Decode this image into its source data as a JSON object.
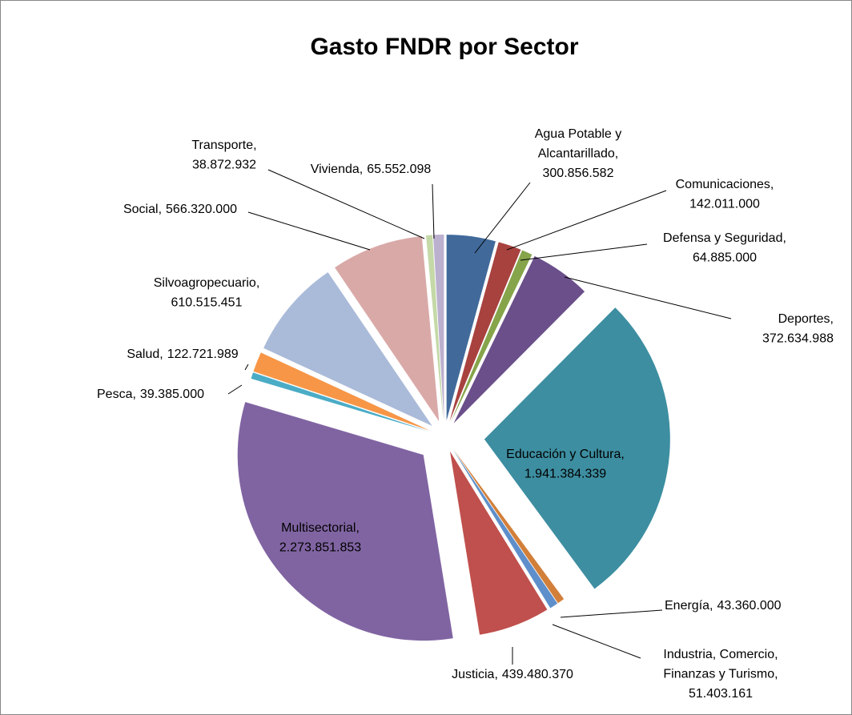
{
  "chart_data": {
    "type": "pie",
    "title": "Gasto FNDR por Sector",
    "label_separator": ",",
    "categories": [
      "Agua Potable y Alcantarillado",
      "Comunicaciones",
      "Defensa y Seguridad",
      "Deportes",
      "Educación y Cultura",
      "Energía",
      "Industria, Comercio, Finanzas y Turismo",
      "Justicia",
      "Multisectorial",
      "Pesca",
      "Salud",
      "Silvoagropecuario",
      "Social",
      "Transporte",
      "Vivienda"
    ],
    "values": [
      300856582,
      142011000,
      64885000,
      372634988,
      1941384339,
      43360000,
      51403161,
      439480370,
      2273851853,
      39385000,
      122721989,
      610515451,
      566320000,
      38872932,
      65552098
    ],
    "value_labels": [
      "300.856.582",
      "142.011.000",
      "64.885.000",
      "372.634.988",
      "1.941.384.339",
      "43.360.000",
      "51.403.161",
      "439.480.370",
      "2.273.851.853",
      "39.385.000",
      "122.721.989",
      "610.515.451",
      "566.320.000",
      "38.872.932",
      "65.552.098"
    ],
    "colors": [
      "#416a9b",
      "#a8423f",
      "#86a44a",
      "#6a4f8a",
      "#3d8ea1",
      "#d27f3a",
      "#5f8fca",
      "#c0504d",
      "#8064a2",
      "#4bacc6",
      "#f79646",
      "#aabbd9",
      "#d9a9a8",
      "#c4d9a7",
      "#bcb0cf"
    ]
  }
}
